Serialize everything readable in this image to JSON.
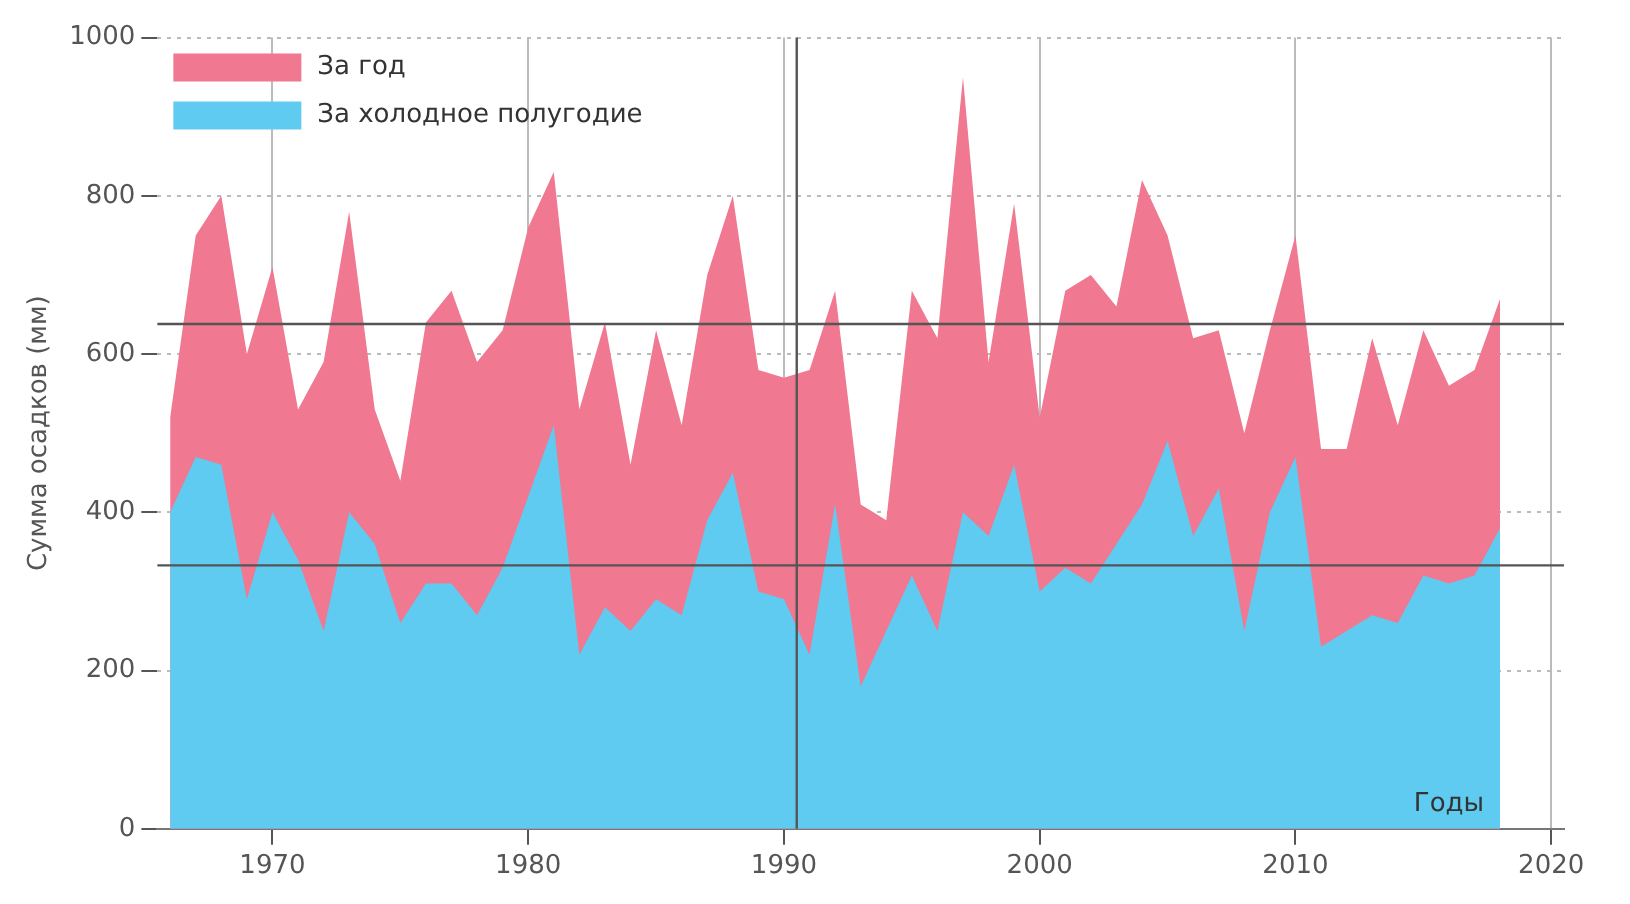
{
  "chart_data": {
    "type": "area",
    "ylabel": "Сумма осадков (мм)",
    "xlabel": "Годы",
    "x": [
      1966,
      1967,
      1968,
      1969,
      1970,
      1971,
      1972,
      1973,
      1974,
      1975,
      1976,
      1977,
      1978,
      1979,
      1980,
      1981,
      1982,
      1983,
      1984,
      1985,
      1986,
      1987,
      1988,
      1989,
      1990,
      1991,
      1992,
      1993,
      1994,
      1995,
      1996,
      1997,
      1998,
      1999,
      2000,
      2001,
      2002,
      2003,
      2004,
      2005,
      2006,
      2007,
      2008,
      2009,
      2010,
      2011,
      2012,
      2013,
      2014,
      2015,
      2016,
      2017,
      2018
    ],
    "series": [
      {
        "name": "За год",
        "color": "#f07890",
        "values": [
          520,
          750,
          800,
          600,
          710,
          530,
          590,
          780,
          530,
          440,
          640,
          680,
          590,
          630,
          760,
          830,
          530,
          640,
          460,
          630,
          510,
          700,
          800,
          580,
          570,
          580,
          680,
          410,
          390,
          680,
          620,
          950,
          590,
          790,
          520,
          680,
          700,
          660,
          820,
          750,
          620,
          630,
          500,
          630,
          750,
          480,
          480,
          620,
          510,
          630,
          560,
          580,
          670
        ]
      },
      {
        "name": "За холодное полугодие",
        "color": "#5fcbf0",
        "values": [
          400,
          470,
          460,
          290,
          400,
          340,
          250,
          400,
          360,
          260,
          310,
          310,
          270,
          330,
          420,
          510,
          220,
          280,
          250,
          290,
          270,
          390,
          450,
          300,
          290,
          220,
          410,
          180,
          250,
          320,
          250,
          400,
          370,
          460,
          300,
          330,
          310,
          360,
          410,
          490,
          370,
          430,
          250,
          400,
          470,
          230,
          250,
          270,
          260,
          320,
          310,
          320,
          380
        ]
      }
    ],
    "xlim": [
      1965.5,
      2020.5
    ],
    "xticks": [
      1970,
      1980,
      1990,
      2000,
      2010,
      2020
    ],
    "ylim": [
      0,
      1000
    ],
    "yticks": [
      0,
      200,
      400,
      600,
      800,
      1000
    ],
    "ref_lines": [
      {
        "axis": "y",
        "value": 638,
        "color": "#555555"
      },
      {
        "axis": "y",
        "value": 333,
        "color": "#555555"
      },
      {
        "axis": "x",
        "value": 1990.5,
        "color": "#555555"
      }
    ],
    "grid": true,
    "legend": "top left"
  }
}
